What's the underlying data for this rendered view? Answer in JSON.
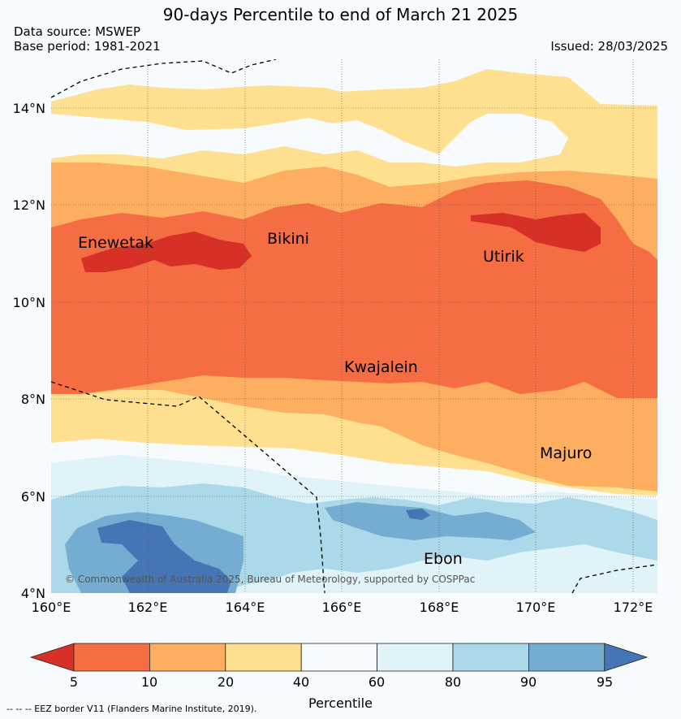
{
  "title": "90-days Percentile to end of March 21 2025",
  "data_source": "Data source: MSWEP",
  "base_period": "Base period: 1981-2021",
  "issued": "Issued: 28/03/2025",
  "copyright": "© Commonwealth of Australia 2025, Bureau of Meteorology, supported by COSPPac",
  "lat_ticks": [
    "14°N",
    "12°N",
    "10°N",
    "8°N",
    "6°N",
    "4°N"
  ],
  "lon_ticks": [
    "160°E",
    "162°E",
    "164°E",
    "166°E",
    "168°E",
    "170°E",
    "172°E"
  ],
  "places": [
    "Enewetak",
    "Bikini",
    "Utirik",
    "Kwajalein",
    "Majuro",
    "Ebon"
  ],
  "colorbar": {
    "title": "Percentile",
    "ticks": [
      "5",
      "10",
      "20",
      "40",
      "60",
      "80",
      "90",
      "95"
    ],
    "colors": [
      "#d73027",
      "#f46d43",
      "#fdae61",
      "#fee090",
      "#f7fbfd",
      "#e0f3f8",
      "#abd9e9",
      "#74add1",
      "#4575b4"
    ]
  },
  "footnote": "--  --  -- EEZ border V11 (Flanders Marine Institute, 2019)."
}
